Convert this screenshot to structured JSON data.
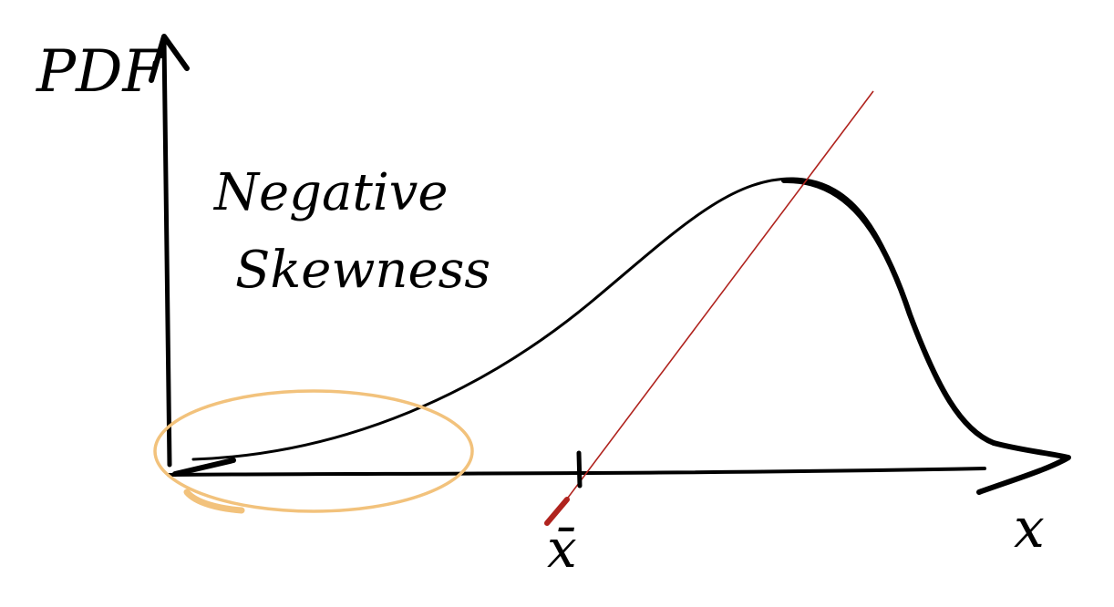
{
  "diagram": {
    "y_axis_label": "PDF",
    "x_axis_label": "x",
    "mean_label": "x̄",
    "annotation_line1": "Negative",
    "annotation_line2": "Skewness"
  },
  "colors": {
    "ink": "#000000",
    "mean_line": "#b0231e",
    "tail_highlight": "#f2c27c",
    "background": "#ffffff"
  }
}
